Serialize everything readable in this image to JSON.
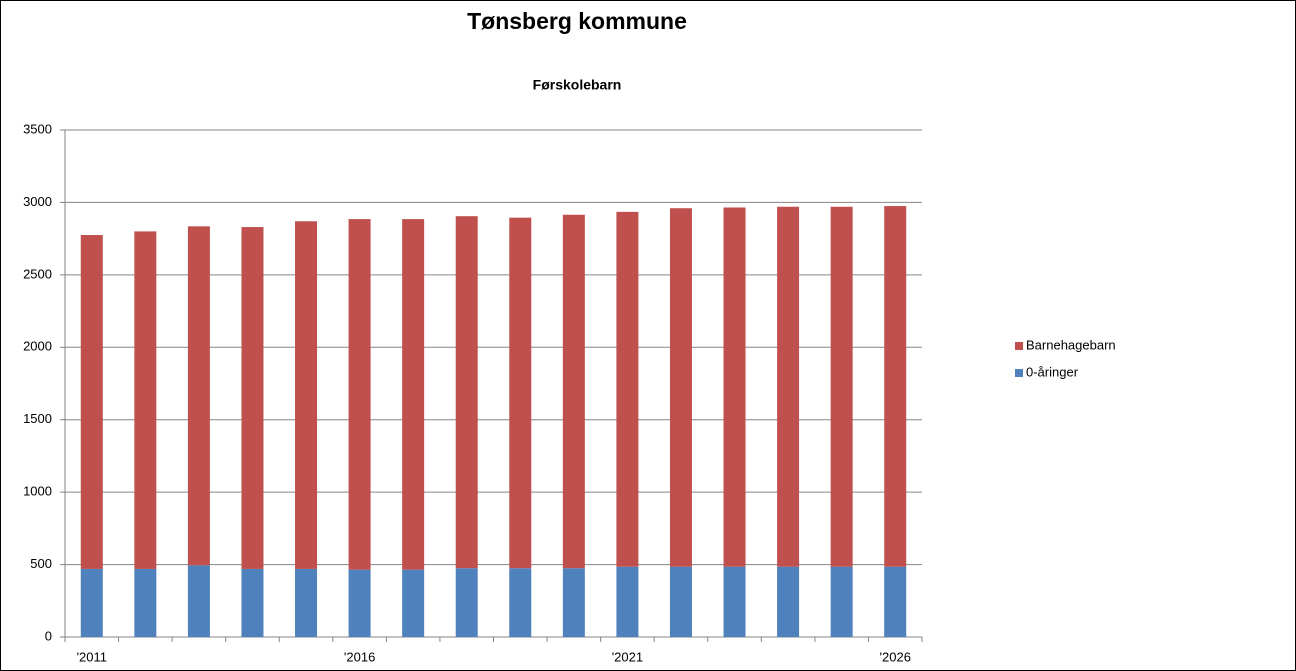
{
  "chart_data": {
    "type": "stacked_bar",
    "title": "Tønsberg kommune",
    "subtitle": "Førskolebarn",
    "categories": [
      "'2011",
      null,
      null,
      null,
      null,
      "'2016",
      null,
      null,
      null,
      null,
      "'2021",
      null,
      null,
      null,
      null,
      "'2026"
    ],
    "series": [
      {
        "name": "0-åringer",
        "color": "#4f81bd",
        "values": [
          470,
          470,
          495,
          470,
          470,
          465,
          465,
          475,
          475,
          475,
          485,
          485,
          485,
          485,
          485,
          485
        ]
      },
      {
        "name": "Barnehagebarn",
        "color": "#c0504d",
        "values": [
          2305,
          2330,
          2340,
          2360,
          2400,
          2420,
          2420,
          2430,
          2420,
          2440,
          2450,
          2475,
          2480,
          2485,
          2485,
          2490
        ]
      }
    ],
    "ylim": [
      0,
      3500
    ],
    "yticks": [
      0,
      500,
      1000,
      1500,
      2000,
      2500,
      3000,
      3500
    ],
    "grid": true,
    "legend": "right"
  }
}
